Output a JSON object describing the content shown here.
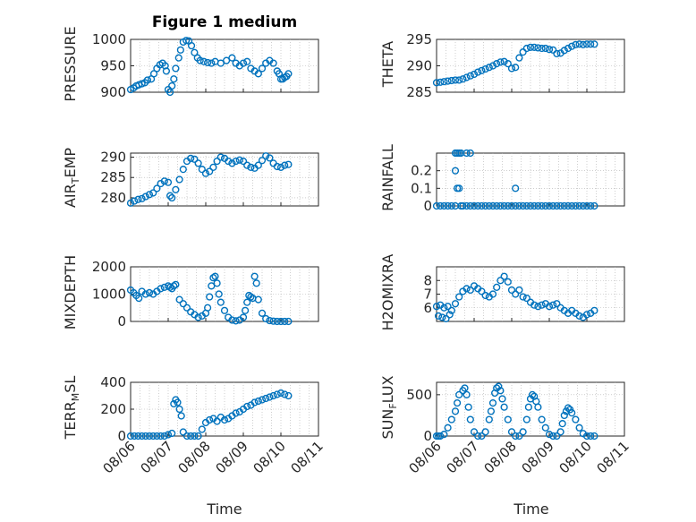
{
  "figure": {
    "title": "Figure 1 medium",
    "xlabel": "Time",
    "x_tick_labels": [
      "08/06",
      "08/07",
      "08/08",
      "08/09",
      "08/10",
      "08/11"
    ],
    "marker_color": "#0072BD",
    "marker": "circle-open"
  },
  "chart_data": [
    {
      "type": "scatter",
      "ylabel": "PRESSURE",
      "x_unit": "days from 08/06",
      "xlim": [
        0,
        5
      ],
      "ylim": [
        900,
        1000
      ],
      "yticks": [
        "900",
        "950",
        "1000"
      ],
      "grid": true,
      "x": [
        0,
        0.08,
        0.15,
        0.22,
        0.3,
        0.38,
        0.45,
        0.55,
        0.62,
        0.7,
        0.78,
        0.85,
        0.92,
        0.95,
        1.0,
        1.05,
        1.1,
        1.15,
        1.2,
        1.28,
        1.33,
        1.4,
        1.48,
        1.55,
        1.62,
        1.7,
        1.78,
        1.85,
        1.95,
        2.05,
        2.15,
        2.25,
        2.4,
        2.55,
        2.7,
        2.8,
        2.9,
        3.0,
        3.1,
        3.2,
        3.3,
        3.4,
        3.5,
        3.6,
        3.7,
        3.8,
        3.9,
        3.95,
        4.0,
        4.05,
        4.1,
        4.15,
        4.2
      ],
      "y": [
        905,
        908,
        912,
        914,
        916,
        918,
        923,
        925,
        935,
        945,
        952,
        955,
        950,
        940,
        905,
        900,
        912,
        925,
        945,
        965,
        980,
        995,
        998,
        997,
        988,
        975,
        965,
        960,
        958,
        956,
        955,
        958,
        955,
        960,
        965,
        955,
        950,
        955,
        958,
        945,
        940,
        935,
        945,
        955,
        960,
        955,
        940,
        935,
        925,
        925,
        928,
        930,
        935
      ]
    },
    {
      "type": "scatter",
      "ylabel": "THETA",
      "x_unit": "days from 08/06",
      "xlim": [
        0,
        5
      ],
      "ylim": [
        285,
        295
      ],
      "yticks": [
        "285",
        "290",
        "295"
      ],
      "grid": true,
      "x": [
        0,
        0.1,
        0.2,
        0.3,
        0.4,
        0.5,
        0.6,
        0.7,
        0.8,
        0.9,
        1.0,
        1.1,
        1.2,
        1.3,
        1.4,
        1.5,
        1.6,
        1.7,
        1.8,
        1.9,
        2.0,
        2.1,
        2.2,
        2.3,
        2.4,
        2.5,
        2.6,
        2.7,
        2.8,
        2.9,
        3.0,
        3.1,
        3.2,
        3.3,
        3.4,
        3.5,
        3.6,
        3.7,
        3.8,
        3.9,
        4.0,
        4.1,
        4.2
      ],
      "y": [
        286.8,
        286.9,
        287.0,
        287.1,
        287.2,
        287.3,
        287.3,
        287.5,
        287.8,
        288.1,
        288.4,
        288.8,
        289.1,
        289.4,
        289.7,
        290.0,
        290.4,
        290.7,
        290.8,
        290.4,
        289.5,
        289.7,
        291.5,
        292.6,
        293.3,
        293.5,
        293.5,
        293.4,
        293.3,
        293.3,
        293.1,
        293.0,
        292.3,
        292.4,
        292.9,
        293.3,
        293.7,
        294.0,
        294.1,
        294.0,
        294.1,
        294.1,
        294.1
      ]
    },
    {
      "type": "scatter",
      "ylabel": "AIR_TEMP",
      "x_unit": "days from 08/06",
      "xlim": [
        0,
        5
      ],
      "ylim": [
        278,
        291
      ],
      "yticks": [
        "280",
        "285",
        "290"
      ],
      "grid": true,
      "x": [
        0,
        0.1,
        0.2,
        0.3,
        0.4,
        0.5,
        0.6,
        0.7,
        0.8,
        0.9,
        1.0,
        1.05,
        1.1,
        1.2,
        1.3,
        1.4,
        1.5,
        1.6,
        1.7,
        1.8,
        1.9,
        2.0,
        2.1,
        2.2,
        2.3,
        2.4,
        2.5,
        2.6,
        2.7,
        2.8,
        2.9,
        3.0,
        3.1,
        3.2,
        3.3,
        3.4,
        3.5,
        3.6,
        3.7,
        3.8,
        3.9,
        4.0,
        4.1,
        4.2
      ],
      "y": [
        278.7,
        279.2,
        279.6,
        279.8,
        280.3,
        280.8,
        281.2,
        282.3,
        283.5,
        284.1,
        283.8,
        280.5,
        280.0,
        282.0,
        284.5,
        287.0,
        289.0,
        289.7,
        289.5,
        288.5,
        287.0,
        286.0,
        286.5,
        287.5,
        289.0,
        290.0,
        289.7,
        289.0,
        288.5,
        289.0,
        289.3,
        289.0,
        288.0,
        287.5,
        287.3,
        288.0,
        289.2,
        290.3,
        289.8,
        288.5,
        287.7,
        287.5,
        288.0,
        288.2
      ]
    },
    {
      "type": "scatter",
      "ylabel": "RAINFALL",
      "x_unit": "days from 08/06",
      "xlim": [
        0,
        5
      ],
      "ylim": [
        0,
        0.3
      ],
      "yticks": [
        "0",
        "0.1",
        "0.2"
      ],
      "grid": true,
      "x": [
        0,
        0.1,
        0.2,
        0.3,
        0.4,
        0.5,
        0.5,
        0.5,
        0.55,
        0.55,
        0.6,
        0.6,
        0.65,
        0.65,
        0.7,
        0.8,
        0.8,
        0.9,
        0.9,
        1.0,
        1.1,
        1.2,
        1.3,
        1.4,
        1.5,
        1.6,
        1.7,
        1.8,
        1.9,
        2.0,
        2.1,
        2.1,
        2.2,
        2.3,
        2.4,
        2.5,
        2.6,
        2.7,
        2.8,
        2.9,
        3.0,
        3.1,
        3.2,
        3.3,
        3.4,
        3.5,
        3.6,
        3.7,
        3.8,
        3.9,
        4.0,
        4.1,
        4.2
      ],
      "y": [
        0,
        0,
        0,
        0,
        0,
        0,
        0.3,
        0.2,
        0.3,
        0.1,
        0.3,
        0.1,
        0.3,
        0,
        0,
        0.3,
        0,
        0.3,
        0,
        0,
        0,
        0,
        0,
        0,
        0,
        0,
        0,
        0,
        0,
        0,
        0,
        0.1,
        0,
        0,
        0,
        0,
        0,
        0,
        0,
        0,
        0,
        0,
        0,
        0,
        0,
        0,
        0,
        0,
        0,
        0,
        0,
        0,
        0
      ]
    },
    {
      "type": "scatter",
      "ylabel": "MIXDEPTH",
      "x_unit": "days from 08/06",
      "xlim": [
        0,
        5
      ],
      "ylim": [
        0,
        2000
      ],
      "yticks": [
        "0",
        "1000",
        "2000"
      ],
      "grid": true,
      "x": [
        0,
        0.08,
        0.15,
        0.22,
        0.3,
        0.4,
        0.5,
        0.6,
        0.7,
        0.8,
        0.9,
        1.0,
        1.05,
        1.1,
        1.15,
        1.2,
        1.3,
        1.4,
        1.5,
        1.6,
        1.7,
        1.8,
        1.9,
        2.0,
        2.05,
        2.1,
        2.15,
        2.2,
        2.25,
        2.3,
        2.35,
        2.4,
        2.5,
        2.6,
        2.7,
        2.8,
        2.9,
        3.0,
        3.05,
        3.1,
        3.15,
        3.2,
        3.25,
        3.3,
        3.35,
        3.4,
        3.5,
        3.6,
        3.7,
        3.8,
        3.9,
        4.0,
        4.1,
        4.2
      ],
      "y": [
        1150,
        1050,
        950,
        850,
        1100,
        1000,
        1050,
        1000,
        1100,
        1200,
        1250,
        1300,
        1250,
        1200,
        1300,
        1350,
        800,
        650,
        500,
        350,
        250,
        150,
        200,
        300,
        500,
        900,
        1300,
        1600,
        1650,
        1400,
        1000,
        700,
        400,
        150,
        50,
        20,
        50,
        150,
        400,
        700,
        950,
        900,
        850,
        1650,
        1400,
        800,
        300,
        100,
        30,
        10,
        0,
        0,
        0,
        0
      ]
    },
    {
      "type": "scatter",
      "ylabel": "H2OMIXRA",
      "x_unit": "days from 08/06",
      "xlim": [
        0,
        5
      ],
      "ylim": [
        5,
        9
      ],
      "yticks": [
        "6",
        "7",
        "8"
      ],
      "grid": true,
      "x": [
        0,
        0.05,
        0.1,
        0.15,
        0.2,
        0.25,
        0.3,
        0.35,
        0.4,
        0.5,
        0.6,
        0.7,
        0.8,
        0.9,
        1.0,
        1.1,
        1.2,
        1.3,
        1.4,
        1.5,
        1.6,
        1.7,
        1.8,
        1.9,
        2.0,
        2.1,
        2.2,
        2.3,
        2.4,
        2.5,
        2.6,
        2.7,
        2.8,
        2.9,
        3.0,
        3.1,
        3.2,
        3.3,
        3.4,
        3.5,
        3.6,
        3.7,
        3.8,
        3.9,
        4.0,
        4.1,
        4.2
      ],
      "y": [
        6.1,
        5.4,
        6.2,
        5.3,
        6.0,
        5.2,
        6.1,
        5.5,
        5.8,
        6.3,
        6.8,
        7.2,
        7.4,
        7.3,
        7.6,
        7.4,
        7.2,
        6.9,
        6.8,
        7.0,
        7.5,
        8.0,
        8.3,
        7.9,
        7.3,
        7.0,
        7.3,
        6.8,
        6.7,
        6.4,
        6.2,
        6.1,
        6.2,
        6.3,
        6.1,
        6.2,
        6.3,
        6.0,
        5.8,
        5.6,
        5.8,
        5.6,
        5.4,
        5.3,
        5.5,
        5.6,
        5.8
      ]
    },
    {
      "type": "scatter",
      "ylabel": "TERR_MSL",
      "x_unit": "days from 08/06",
      "xlim": [
        0,
        5
      ],
      "ylim": [
        0,
        400
      ],
      "yticks": [
        "0",
        "200",
        "400"
      ],
      "grid": true,
      "x": [
        0,
        0.1,
        0.2,
        0.3,
        0.4,
        0.5,
        0.6,
        0.7,
        0.8,
        0.9,
        1.0,
        1.1,
        1.15,
        1.2,
        1.25,
        1.3,
        1.35,
        1.4,
        1.5,
        1.6,
        1.7,
        1.8,
        1.9,
        2.0,
        2.1,
        2.2,
        2.3,
        2.4,
        2.5,
        2.6,
        2.7,
        2.8,
        2.9,
        3.0,
        3.1,
        3.2,
        3.3,
        3.4,
        3.5,
        3.6,
        3.7,
        3.8,
        3.9,
        4.0,
        4.1,
        4.2
      ],
      "y": [
        0,
        0,
        0,
        0,
        0,
        0,
        0,
        0,
        0,
        0,
        10,
        20,
        240,
        270,
        250,
        200,
        150,
        30,
        0,
        0,
        0,
        0,
        50,
        100,
        120,
        130,
        110,
        140,
        120,
        130,
        150,
        170,
        180,
        200,
        220,
        230,
        250,
        260,
        270,
        280,
        290,
        300,
        310,
        320,
        310,
        300
      ]
    },
    {
      "type": "scatter",
      "ylabel": "SUN_FLUX",
      "x_unit": "days from 08/06",
      "xlim": [
        0,
        5
      ],
      "ylim": [
        0,
        650
      ],
      "yticks": [
        "0",
        "500"
      ],
      "grid": true,
      "x": [
        0,
        0.05,
        0.1,
        0.2,
        0.3,
        0.4,
        0.5,
        0.55,
        0.6,
        0.7,
        0.75,
        0.8,
        0.85,
        0.9,
        1.0,
        1.1,
        1.2,
        1.3,
        1.4,
        1.45,
        1.5,
        1.55,
        1.6,
        1.65,
        1.7,
        1.75,
        1.8,
        1.9,
        2.0,
        2.1,
        2.2,
        2.3,
        2.4,
        2.45,
        2.5,
        2.55,
        2.6,
        2.65,
        2.7,
        2.8,
        2.9,
        3.0,
        3.1,
        3.2,
        3.3,
        3.35,
        3.4,
        3.45,
        3.5,
        3.55,
        3.6,
        3.7,
        3.8,
        3.9,
        4.0,
        4.1,
        4.2
      ],
      "y": [
        0,
        0,
        0,
        20,
        100,
        200,
        300,
        400,
        500,
        550,
        580,
        500,
        350,
        200,
        50,
        0,
        0,
        50,
        200,
        300,
        400,
        520,
        580,
        600,
        550,
        450,
        350,
        200,
        50,
        0,
        0,
        50,
        200,
        350,
        450,
        500,
        480,
        420,
        350,
        200,
        100,
        20,
        0,
        0,
        50,
        150,
        250,
        300,
        340,
        320,
        280,
        200,
        100,
        30,
        0,
        0,
        0
      ]
    }
  ]
}
